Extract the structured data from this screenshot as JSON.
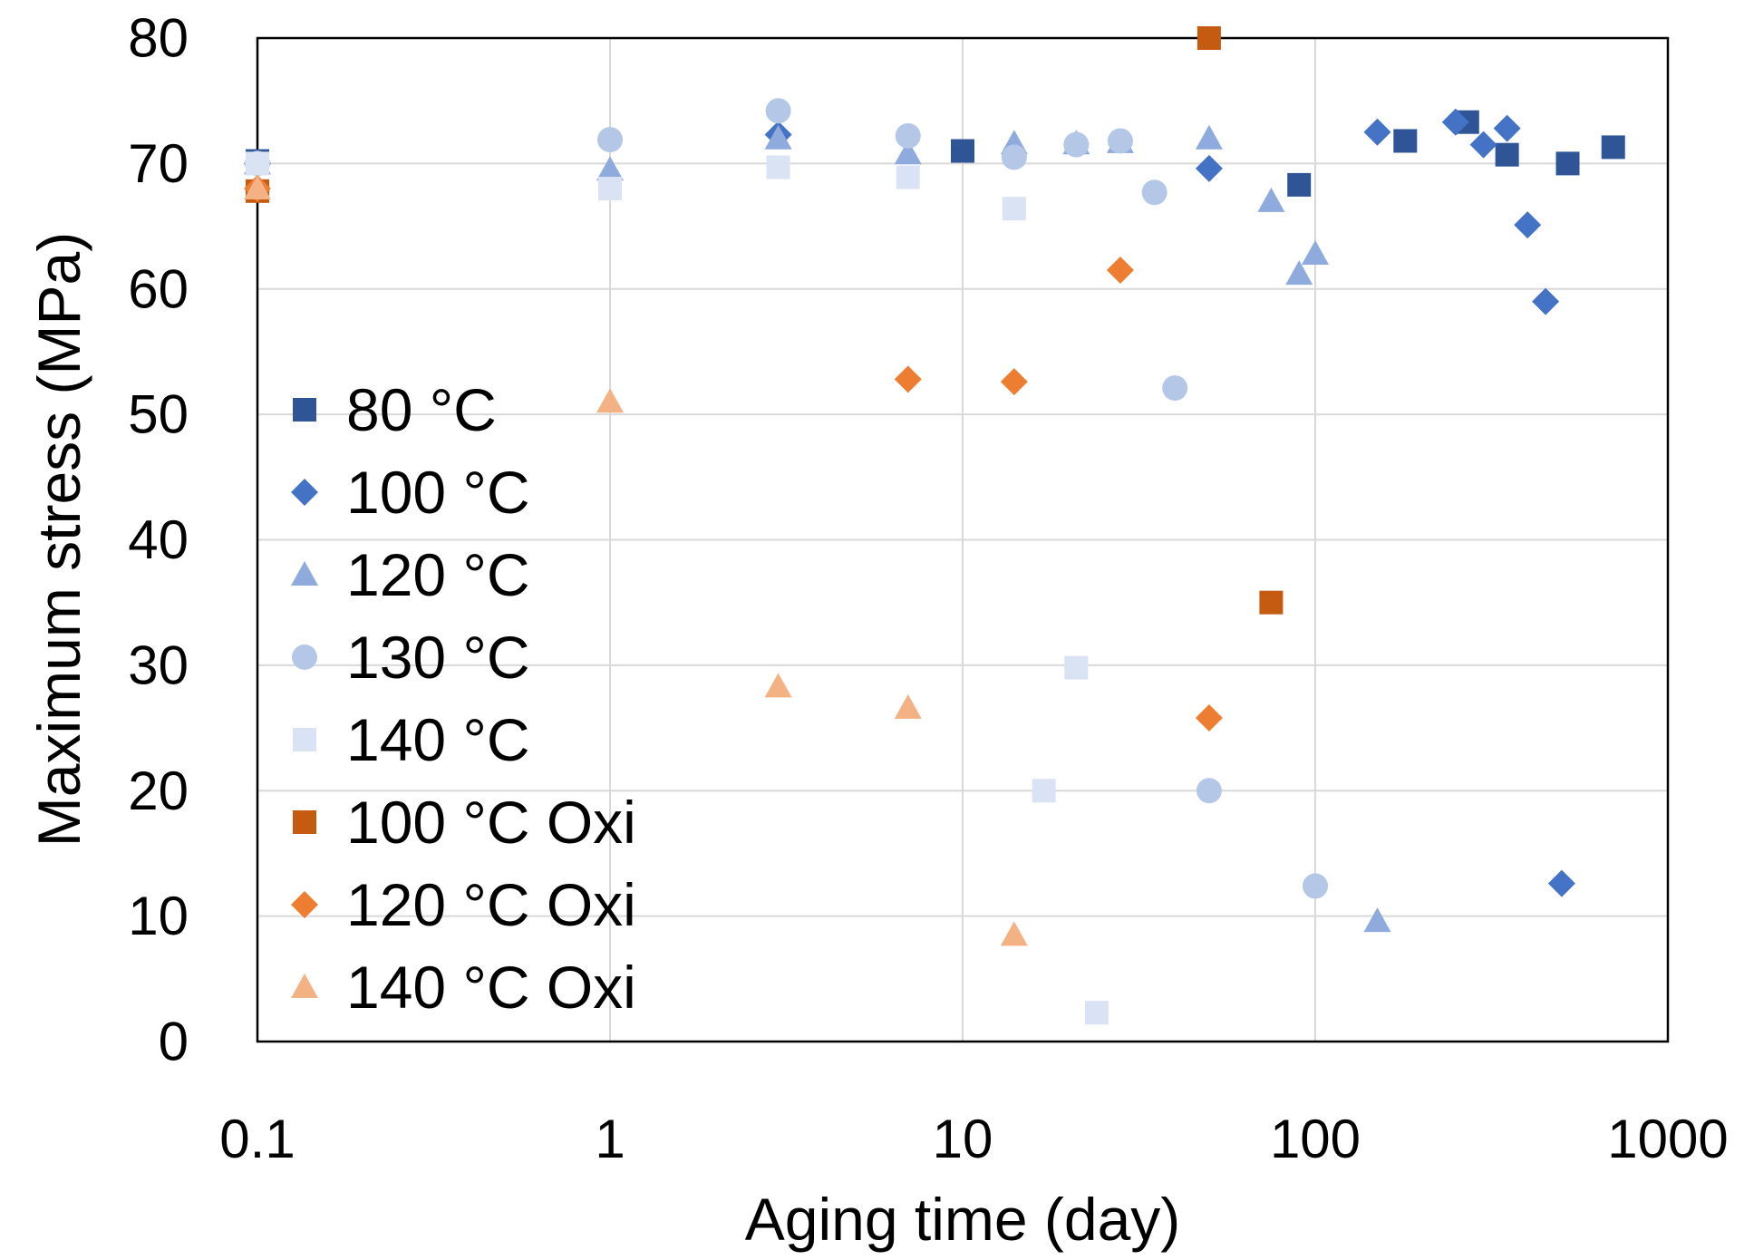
{
  "chart_data": {
    "type": "scatter",
    "title": "",
    "xlabel": "Aging time (day)",
    "ylabel": "Maximum stress (MPa)",
    "xscale": "log",
    "xlim": [
      0.1,
      1000
    ],
    "ylim": [
      0,
      80
    ],
    "xticks": [
      {
        "value": 0.1,
        "label": "0.1"
      },
      {
        "value": 1,
        "label": "1"
      },
      {
        "value": 10,
        "label": "10"
      },
      {
        "value": 100,
        "label": "100"
      },
      {
        "value": 1000,
        "label": "1000"
      }
    ],
    "yticks": [
      {
        "value": 0,
        "label": "0"
      },
      {
        "value": 10,
        "label": "10"
      },
      {
        "value": 20,
        "label": "20"
      },
      {
        "value": 30,
        "label": "30"
      },
      {
        "value": 40,
        "label": "40"
      },
      {
        "value": 50,
        "label": "50"
      },
      {
        "value": 60,
        "label": "60"
      },
      {
        "value": 70,
        "label": "70"
      },
      {
        "value": 80,
        "label": "80"
      }
    ],
    "grid": true,
    "legend_position": "left",
    "series": [
      {
        "name": "80 °C",
        "marker": "square",
        "color": "#2f5597",
        "points": [
          [
            0.1,
            70.2
          ],
          [
            10,
            71.0
          ],
          [
            90,
            68.3
          ],
          [
            180,
            71.8
          ],
          [
            270,
            73.3
          ],
          [
            350,
            70.7
          ],
          [
            520,
            70.0
          ],
          [
            700,
            71.3
          ]
        ]
      },
      {
        "name": "100 °C",
        "marker": "diamond",
        "color": "#4472c4",
        "points": [
          [
            0.1,
            70.0
          ],
          [
            3,
            72.3
          ],
          [
            50,
            69.6
          ],
          [
            150,
            72.5
          ],
          [
            250,
            73.3
          ],
          [
            300,
            71.5
          ],
          [
            350,
            72.8
          ],
          [
            400,
            65.1
          ],
          [
            450,
            59.0
          ],
          [
            500,
            12.6
          ]
        ]
      },
      {
        "name": "120 °C",
        "marker": "triangle",
        "color": "#8faadc",
        "points": [
          [
            0.1,
            70.0
          ],
          [
            1,
            69.5
          ],
          [
            3,
            72.0
          ],
          [
            7,
            70.8
          ],
          [
            14,
            71.6
          ],
          [
            21,
            71.6
          ],
          [
            28,
            71.7
          ],
          [
            50,
            72.0
          ],
          [
            75,
            67.0
          ],
          [
            90,
            61.2
          ],
          [
            100,
            62.8
          ],
          [
            150,
            9.6
          ]
        ]
      },
      {
        "name": "130 °C",
        "marker": "circle",
        "color": "#b4c7e7",
        "points": [
          [
            0.1,
            70.0
          ],
          [
            1,
            71.9
          ],
          [
            3,
            74.2
          ],
          [
            7,
            72.2
          ],
          [
            14,
            70.5
          ],
          [
            21,
            71.5
          ],
          [
            28,
            71.8
          ],
          [
            35,
            67.7
          ],
          [
            40,
            52.1
          ],
          [
            50,
            20.0
          ],
          [
            100,
            12.4
          ]
        ]
      },
      {
        "name": "140 °C",
        "marker": "square",
        "color": "#dae3f3",
        "points": [
          [
            0.1,
            70.0
          ],
          [
            1,
            68.0
          ],
          [
            3,
            69.7
          ],
          [
            7,
            68.9
          ],
          [
            14,
            66.4
          ],
          [
            17,
            20.0
          ],
          [
            21,
            29.8
          ],
          [
            24,
            2.3
          ]
        ]
      },
      {
        "name": "100 °C Oxi",
        "marker": "square",
        "color": "#c55a11",
        "points": [
          [
            0.1,
            67.8
          ],
          [
            50,
            80.0
          ],
          [
            75,
            35.0
          ]
        ]
      },
      {
        "name": "120 °C Oxi",
        "marker": "diamond",
        "color": "#ed7d31",
        "points": [
          [
            0.1,
            68.0
          ],
          [
            7,
            52.8
          ],
          [
            14,
            52.6
          ],
          [
            28,
            61.5
          ],
          [
            50,
            25.8
          ]
        ]
      },
      {
        "name": "140 °C Oxi",
        "marker": "triangle",
        "color": "#f4b183",
        "points": [
          [
            0.1,
            68.0
          ],
          [
            1,
            51.0
          ],
          [
            3,
            28.3
          ],
          [
            7,
            26.6
          ],
          [
            14,
            8.5
          ]
        ]
      }
    ]
  }
}
